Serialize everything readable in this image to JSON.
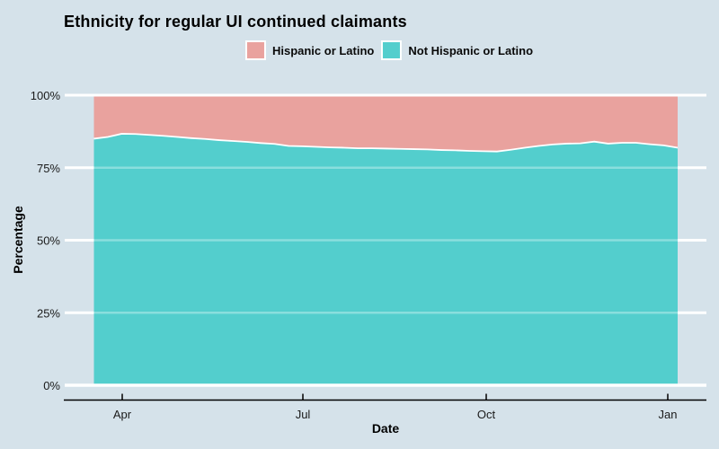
{
  "colors": {
    "background": "#d5e2ea",
    "grid": "#ffffff",
    "area_separator": "#ffffff",
    "axis_line": "#000000",
    "tick_text": "#1a1a1a",
    "hispanic_fill": "#e9a29e",
    "not_hispanic_fill": "#53cecd"
  },
  "chart_data": {
    "type": "area",
    "stacked": true,
    "title": "Ethnicity for regular UI continued claimants",
    "xlabel": "Date",
    "ylabel": "Percentage",
    "ylim": [
      0,
      100
    ],
    "grid": true,
    "legend_position": "top-center",
    "x_tick_labels": [
      "Apr",
      "Jul",
      "Oct",
      "Jan"
    ],
    "y_tick_labels": [
      "0%",
      "25%",
      "50%",
      "75%",
      "100%"
    ],
    "y_tick_values": [
      0,
      25,
      50,
      75,
      100
    ],
    "x_weeks_approx": [
      "Mar 18",
      "Mar 25",
      "Apr 1",
      "Apr 8",
      "Apr 15",
      "Apr 22",
      "Apr 29",
      "May 6",
      "May 13",
      "May 20",
      "May 27",
      "Jun 3",
      "Jun 10",
      "Jun 17",
      "Jun 24",
      "Jul 1",
      "Jul 8",
      "Jul 15",
      "Jul 22",
      "Jul 29",
      "Aug 5",
      "Aug 12",
      "Aug 19",
      "Aug 26",
      "Sep 2",
      "Sep 9",
      "Sep 16",
      "Sep 23",
      "Sep 30",
      "Oct 7",
      "Oct 14",
      "Oct 21",
      "Oct 28",
      "Nov 4",
      "Nov 11",
      "Nov 18",
      "Nov 25",
      "Dec 2",
      "Dec 9",
      "Dec 16",
      "Dec 23",
      "Dec 30",
      "Jan 6"
    ],
    "series": [
      {
        "name": "Hispanic or Latino",
        "color": "#e9a29e",
        "values": [
          15.0,
          14.4,
          13.3,
          13.4,
          13.7,
          14.0,
          14.4,
          14.8,
          15.1,
          15.5,
          15.8,
          16.1,
          16.5,
          16.8,
          17.5,
          17.6,
          17.8,
          18.0,
          18.1,
          18.3,
          18.3,
          18.4,
          18.5,
          18.6,
          18.7,
          18.9,
          19.0,
          19.2,
          19.3,
          19.4,
          18.8,
          18.1,
          17.5,
          17.0,
          16.7,
          16.6,
          16.0,
          16.7,
          16.4,
          16.4,
          16.9,
          17.3,
          18.1
        ]
      },
      {
        "name": "Not Hispanic or Latino",
        "color": "#53cecd",
        "values": [
          85.0,
          85.6,
          86.7,
          86.6,
          86.3,
          86.0,
          85.6,
          85.2,
          84.9,
          84.5,
          84.2,
          83.9,
          83.5,
          83.2,
          82.5,
          82.4,
          82.2,
          82.0,
          81.9,
          81.7,
          81.7,
          81.6,
          81.5,
          81.4,
          81.3,
          81.1,
          81.0,
          80.8,
          80.7,
          80.6,
          81.2,
          81.9,
          82.5,
          83.0,
          83.3,
          83.4,
          84.0,
          83.3,
          83.6,
          83.6,
          83.1,
          82.7,
          81.9
        ]
      }
    ]
  }
}
